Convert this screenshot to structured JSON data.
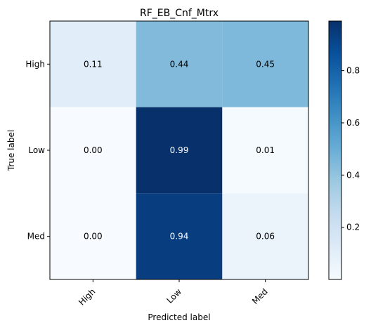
{
  "chart_data": {
    "type": "heatmap",
    "title": "RF_EB_Cnf_Mtrx",
    "xlabel": "Predicted label",
    "ylabel": "True label",
    "x_categories": [
      "High",
      "Low",
      "Med"
    ],
    "y_categories": [
      "High",
      "Low",
      "Med"
    ],
    "values": [
      [
        0.11,
        0.44,
        0.45
      ],
      [
        0.0,
        0.99,
        0.01
      ],
      [
        0.0,
        0.94,
        0.06
      ]
    ],
    "value_labels": [
      [
        "0.11",
        "0.44",
        "0.45"
      ],
      [
        "0.00",
        "0.99",
        "0.01"
      ],
      [
        "0.00",
        "0.94",
        "0.06"
      ]
    ],
    "colormap": "Blues",
    "vmin": 0,
    "vmax": 0.99,
    "colorbar_ticks": [
      0.2,
      0.4,
      0.6,
      0.8
    ],
    "colorbar_tick_labels": [
      "0.2",
      "0.4",
      "0.6",
      "0.8"
    ],
    "colors": {
      "text_light": "#ffffff",
      "text_dark": "#000000"
    }
  }
}
